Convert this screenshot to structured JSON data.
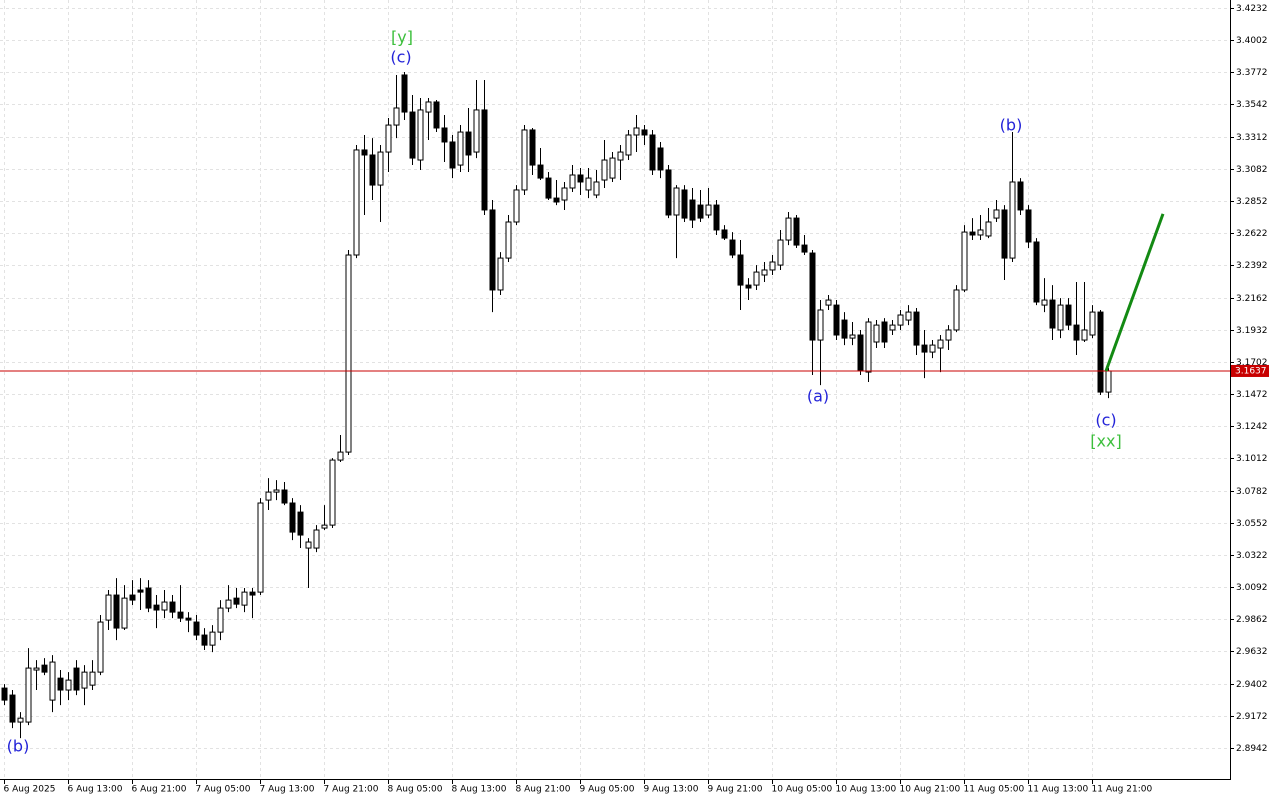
{
  "chart_data": {
    "type": "candlestick",
    "categories": [
      "6 Aug 2025",
      null,
      null,
      null,
      null,
      null,
      null,
      null,
      "6 Aug 13:00",
      null,
      null,
      null,
      null,
      null,
      null,
      null,
      "6 Aug 21:00",
      null,
      null,
      null,
      null,
      null,
      null,
      null,
      "7 Aug 05:00",
      null,
      null,
      null,
      null,
      null,
      null,
      null,
      "7 Aug 13:00",
      null,
      null,
      null,
      null,
      null,
      null,
      null,
      "7 Aug 21:00",
      null,
      null,
      null,
      null,
      null,
      null,
      null,
      "8 Aug 05:00",
      null,
      null,
      null,
      null,
      null,
      null,
      null,
      "8 Aug 13:00",
      null,
      null,
      null,
      null,
      null,
      null,
      null,
      "8 Aug 21:00",
      null,
      null,
      null,
      null,
      null,
      null,
      null,
      "9 Aug 05:00",
      null,
      null,
      null,
      null,
      null,
      null,
      null,
      "9 Aug 13:00",
      null,
      null,
      null,
      null,
      null,
      null,
      null,
      "9 Aug 21:00",
      null,
      null,
      null,
      null,
      null,
      null,
      null,
      "10 Aug 05:00",
      null,
      null,
      null,
      null,
      null,
      null,
      null,
      "10 Aug 13:00",
      null,
      null,
      null,
      null,
      null,
      null,
      null,
      "10 Aug 21:00",
      null,
      null,
      null,
      null,
      null,
      null,
      null,
      "11 Aug 05:00",
      null,
      null,
      null,
      null,
      null,
      null,
      null,
      "11 Aug 13:00",
      null,
      null,
      null,
      null,
      null,
      null,
      null,
      "11 Aug 21:00",
      null,
      null
    ],
    "open": [
      2.937,
      2.932,
      2.9127,
      2.9127,
      2.9499,
      2.9534,
      2.9284,
      2.9441,
      2.9356,
      2.9513,
      2.937,
      2.9391,
      2.9484,
      2.9856,
      3.0035,
      2.9799,
      3.0035,
      3.0071,
      3.0085,
      2.9963,
      2.9928,
      2.9985,
      2.9913,
      2.987,
      2.9842,
      2.9749,
      2.9677,
      2.977,
      2.9942,
      3.0013,
      2.9963,
      3.0056,
      3.0056,
      3.0714,
      3.0771,
      3.0786,
      3.0693,
      3.0628,
      3.0371,
      3.0371,
      3.0514,
      3.0535,
      3.1,
      3.1057,
      3.2466,
      3.3217,
      3.3181,
      3.2966,
      3.3202,
      3.3395,
      3.3753,
      3.3488,
      3.3145,
      3.3488,
      3.356,
      3.3374,
      3.3274,
      3.3109,
      3.3345,
      3.3202,
      3.3503,
      3.2788,
      3.2216,
      3.2444,
      3.2702,
      3.2931,
      3.336,
      3.3109,
      3.3016,
      3.2873,
      3.2859,
      3.2945,
      3.3038,
      3.2931,
      3.2895,
      3.3002,
      3.3016,
      3.3145,
      3.3181,
      3.3324,
      3.336,
      3.3324,
      3.3231,
      3.3074,
      3.2752,
      3.2931,
      3.2859,
      3.2823,
      3.2752,
      3.2823,
      3.2645,
      3.2573,
      3.2466,
      3.2251,
      3.2251,
      3.2323,
      3.2359,
      3.2394,
      3.2573,
      3.273,
      3.2537,
      3.248,
      3.1858,
      3.2108,
      3.2108,
      3.2001,
      3.1872,
      3.1894,
      3.1629,
      3.1844,
      3.1987,
      3.193,
      3.1965,
      3.2001,
      3.2058,
      3.1822,
      3.1772,
      3.1801,
      3.1858,
      3.193,
      3.2216,
      3.263,
      3.2609,
      3.2602,
      3.273,
      3.2788,
      3.2444,
      3.2988,
      3.2788,
      3.2559,
      3.2108,
      3.2144,
      3.193,
      3.2108,
      3.1965,
      3.1858,
      3.1894,
      3.2058,
      3.1486
    ],
    "high": [
      2.9398,
      2.9356,
      2.9198,
      2.9656,
      2.957,
      2.9584,
      2.9606,
      2.9499,
      2.9484,
      2.957,
      2.9534,
      2.957,
      2.9892,
      3.0071,
      3.0156,
      3.0106,
      3.0142,
      3.0156,
      3.0142,
      3.0035,
      3.0071,
      3.0035,
      3.0106,
      2.9913,
      2.9892,
      2.9799,
      2.982,
      2.9999,
      3.0106,
      3.0085,
      3.0085,
      3.0085,
      3.0728,
      3.0871,
      3.0857,
      3.0843,
      3.0728,
      3.0678,
      3.0442,
      3.0535,
      3.0678,
      3.1014,
      3.1179,
      3.2502,
      3.3252,
      3.3324,
      3.3302,
      3.3252,
      3.3445,
      3.3753,
      3.3774,
      3.361,
      3.3588,
      3.3588,
      3.3574,
      3.3467,
      3.3324,
      3.3395,
      3.3517,
      3.3717,
      3.3717,
      3.2859,
      3.2487,
      3.2752,
      3.2966,
      3.3395,
      3.3374,
      3.3231,
      3.3059,
      3.3002,
      3.2988,
      3.3109,
      3.3088,
      3.3088,
      3.3074,
      3.3288,
      3.3202,
      3.3252,
      3.336,
      3.3467,
      3.3395,
      3.336,
      3.3274,
      3.3109,
      3.2966,
      3.2966,
      3.2945,
      3.2931,
      3.2945,
      3.2859,
      3.268,
      3.263,
      3.2573,
      3.2301,
      3.2394,
      3.2416,
      3.2466,
      3.2645,
      3.2773,
      3.2752,
      3.2609,
      3.2502,
      3.2144,
      3.218,
      3.2144,
      3.2058,
      3.1987,
      3.193,
      3.2015,
      3.2001,
      3.2015,
      3.2001,
      3.2073,
      3.2108,
      3.2087,
      3.193,
      3.1858,
      3.1894,
      3.1965,
      3.2251,
      3.268,
      3.273,
      3.2752,
      3.2802,
      3.2859,
      3.2823,
      3.3345,
      3.3016,
      3.2823,
      3.2587,
      3.2301,
      3.2251,
      3.2158,
      3.2158,
      3.2273,
      3.2273,
      3.2108,
      3.2073,
      3.1658
    ],
    "low": [
      2.9248,
      2.9084,
      2.9012,
      2.9105,
      2.9356,
      2.9463,
      2.9198,
      2.9248,
      2.9284,
      2.932,
      2.9248,
      2.9356,
      2.9463,
      2.9785,
      2.9713,
      2.9785,
      2.9963,
      2.9928,
      2.9913,
      2.9799,
      2.987,
      2.987,
      2.9842,
      2.977,
      2.9713,
      2.9642,
      2.9627,
      2.9713,
      2.9913,
      2.9942,
      2.9913,
      2.987,
      3.0035,
      3.0643,
      3.0714,
      3.0678,
      3.0428,
      3.0371,
      3.0085,
      3.0342,
      3.05,
      3.0514,
      3.0986,
      3.1036,
      3.2444,
      3.2752,
      3.2859,
      3.2702,
      3.3059,
      3.3302,
      3.3431,
      3.3109,
      3.3074,
      3.3288,
      3.3345,
      3.3131,
      3.3016,
      3.3059,
      3.3059,
      3.3159,
      3.2752,
      3.2058,
      3.218,
      3.2416,
      3.268,
      3.2895,
      3.3038,
      3.3002,
      3.2859,
      3.2823,
      3.2788,
      3.2916,
      3.2895,
      3.2873,
      3.2873,
      3.2945,
      3.2988,
      3.3002,
      3.3145,
      3.3202,
      3.3252,
      3.3038,
      3.3016,
      3.273,
      3.2444,
      3.2702,
      3.2659,
      3.2702,
      3.273,
      3.2609,
      3.2573,
      3.2444,
      3.2073,
      3.2144,
      3.2216,
      3.2273,
      3.2323,
      3.2359,
      3.2537,
      3.2516,
      3.2466,
      3.1608,
      3.1536,
      3.2073,
      3.1858,
      3.1822,
      3.1822,
      3.1608,
      3.1558,
      3.1801,
      3.1801,
      3.1894,
      3.193,
      3.1965,
      3.1751,
      3.1586,
      3.1729,
      3.1629,
      3.1787,
      3.1915,
      3.2201,
      3.2573,
      3.2573,
      3.2587,
      3.2702,
      3.2287,
      3.2416,
      3.2752,
      3.2516,
      3.2108,
      3.2058,
      3.1858,
      3.1872,
      3.193,
      3.1751,
      3.1844,
      3.1872,
      3.1465,
      3.1443
    ],
    "close": [
      2.9284,
      2.9127,
      2.9155,
      2.9513,
      2.9513,
      2.9484,
      2.9556,
      2.9356,
      2.9427,
      2.9356,
      2.9484,
      2.9484,
      2.9842,
      3.0035,
      2.9799,
      3.0013,
      2.9999,
      3.0056,
      2.9942,
      2.9928,
      2.9985,
      2.9913,
      2.987,
      2.9856,
      2.9749,
      2.9677,
      2.977,
      2.9942,
      2.9999,
      2.997,
      3.0056,
      3.0035,
      3.0693,
      3.0771,
      3.0786,
      3.0693,
      3.0485,
      3.0464,
      3.0414,
      3.05,
      3.0535,
      3.1,
      3.1057,
      3.2466,
      3.3217,
      3.3181,
      3.2966,
      3.3202,
      3.3395,
      3.3517,
      3.3488,
      3.3159,
      3.3503,
      3.356,
      3.3374,
      3.3274,
      3.3088,
      3.3345,
      3.3181,
      3.3503,
      3.2788,
      3.2216,
      3.2444,
      3.2702,
      3.2931,
      3.336,
      3.3109,
      3.3016,
      3.2873,
      3.2845,
      3.2945,
      3.3038,
      3.2988,
      3.3016,
      3.2988,
      3.3145,
      3.3159,
      3.3202,
      3.3324,
      3.3374,
      3.3324,
      3.3074,
      3.3074,
      3.2752,
      3.2945,
      3.273,
      3.2716,
      3.273,
      3.2823,
      3.2645,
      3.2587,
      3.2466,
      3.2251,
      3.223,
      3.2344,
      3.2359,
      3.2416,
      3.2573,
      3.273,
      3.2537,
      3.2487,
      3.1858,
      3.2073,
      3.2144,
      3.1894,
      3.1872,
      3.1894,
      3.1644,
      3.1987,
      3.1965,
      3.1844,
      3.1965,
      3.2037,
      3.2058,
      3.1822,
      3.1772,
      3.1822,
      3.1858,
      3.193,
      3.2216,
      3.263,
      3.2609,
      3.2645,
      3.2702,
      3.2788,
      3.2444,
      3.2988,
      3.2788,
      3.2559,
      3.213,
      3.2144,
      3.1944,
      3.2108,
      3.1965,
      3.1858,
      3.193,
      3.2058,
      3.1486,
      3.1637
    ],
    "ylim": [
      2.872,
      3.4289
    ],
    "yticks": [
      3.4232,
      3.4002,
      3.3772,
      3.3542,
      3.3312,
      3.3082,
      3.2852,
      3.2622,
      3.2392,
      3.2162,
      3.1932,
      3.1702,
      3.1472,
      3.1242,
      3.1012,
      3.0782,
      3.0552,
      3.0322,
      3.0092,
      2.9862,
      2.9632,
      2.9402,
      2.9172,
      2.8942
    ],
    "grid": true,
    "bull_color": "#ffffff",
    "bear_color": "#000000",
    "current_price": 3.1637,
    "current_price_color": "#c80000",
    "projection": {
      "color": "#138a13",
      "values": [
        3.1637,
        3.276
      ]
    },
    "annotations": [
      {
        "text": "[y]",
        "color": "#3cbf3c"
      },
      {
        "text": "(c)",
        "color": "#2323d8"
      },
      {
        "text": "(b)",
        "color": "#2323d8"
      },
      {
        "text": "(a)",
        "color": "#2323d8"
      },
      {
        "text": "(c)",
        "color": "#2323d8"
      },
      {
        "text": "[xx]",
        "color": "#3cbf3c"
      },
      {
        "text": "(b)",
        "color": "#2323d8"
      }
    ]
  }
}
